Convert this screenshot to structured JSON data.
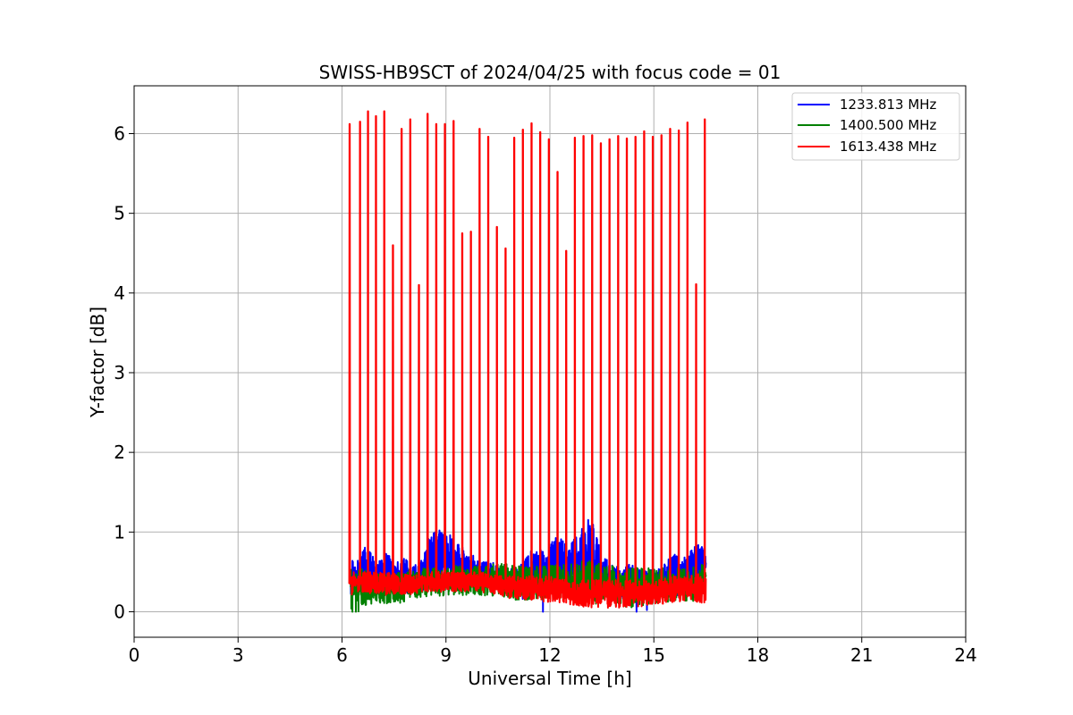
{
  "chart_data": {
    "type": "line",
    "title": "SWISS-HB9SCT of 2024/04/25 with focus code = 01",
    "xlabel": "Universal Time [h]",
    "ylabel": "Y-factor [dB]",
    "xlim": [
      0,
      24
    ],
    "ylim": [
      -0.32,
      6.6
    ],
    "xticks": [
      0,
      3,
      6,
      9,
      12,
      15,
      18,
      21,
      24
    ],
    "xtick_labels": [
      "0",
      "3",
      "6",
      "9",
      "12",
      "15",
      "18",
      "21",
      "24"
    ],
    "yticks": [
      0,
      1,
      2,
      3,
      4,
      5,
      6
    ],
    "ytick_labels": [
      "0",
      "1",
      "2",
      "3",
      "4",
      "5",
      "6"
    ],
    "grid": true,
    "legend_position": "top-right",
    "time_range": [
      6.2,
      16.5
    ],
    "series": [
      {
        "name": "1233.813 MHz",
        "color": "#0000ff",
        "envelope": [
          [
            6.25,
            0.2,
            0.68
          ],
          [
            6.5,
            0.25,
            0.7
          ],
          [
            6.7,
            0.25,
            0.85
          ],
          [
            7.0,
            0.2,
            0.6
          ],
          [
            7.3,
            0.22,
            0.75
          ],
          [
            7.5,
            0.25,
            0.6
          ],
          [
            7.8,
            0.2,
            0.7
          ],
          [
            8.0,
            0.25,
            0.55
          ],
          [
            8.3,
            0.25,
            0.65
          ],
          [
            8.5,
            0.3,
            0.95
          ],
          [
            8.8,
            0.3,
            1.05
          ],
          [
            9.0,
            0.3,
            1.0
          ],
          [
            9.3,
            0.3,
            0.9
          ],
          [
            9.5,
            0.3,
            0.8
          ],
          [
            9.8,
            0.3,
            0.7
          ],
          [
            10.0,
            0.3,
            0.62
          ],
          [
            10.3,
            0.3,
            0.65
          ],
          [
            10.5,
            0.3,
            0.6
          ],
          [
            10.8,
            0.2,
            0.58
          ],
          [
            11.0,
            0.2,
            0.55
          ],
          [
            11.2,
            0.15,
            0.6
          ],
          [
            11.5,
            0.2,
            0.8
          ],
          [
            11.8,
            0.2,
            0.82
          ],
          [
            12.0,
            0.2,
            0.9
          ],
          [
            12.3,
            0.2,
            0.95
          ],
          [
            12.5,
            0.2,
            0.85
          ],
          [
            12.8,
            0.2,
            0.95
          ],
          [
            13.0,
            0.2,
            1.1
          ],
          [
            13.2,
            0.2,
            1.2
          ],
          [
            13.5,
            0.2,
            0.7
          ],
          [
            13.8,
            0.2,
            0.6
          ],
          [
            14.0,
            0.2,
            0.55
          ],
          [
            14.3,
            0.1,
            0.6
          ],
          [
            14.6,
            0.2,
            0.55
          ],
          [
            15.0,
            0.2,
            0.55
          ],
          [
            15.3,
            0.2,
            0.6
          ],
          [
            15.6,
            0.2,
            0.75
          ],
          [
            15.9,
            0.2,
            0.7
          ],
          [
            16.2,
            0.2,
            0.85
          ],
          [
            16.45,
            0.3,
            0.9
          ]
        ],
        "dips": [
          [
            11.8,
            0.0
          ],
          [
            14.5,
            0.0
          ],
          [
            14.8,
            0.02
          ]
        ]
      },
      {
        "name": "1400.500 MHz",
        "color": "#008000",
        "envelope": [
          [
            6.25,
            0.0,
            0.55
          ],
          [
            6.5,
            0.0,
            0.55
          ],
          [
            6.8,
            0.1,
            0.5
          ],
          [
            7.2,
            0.1,
            0.5
          ],
          [
            7.6,
            0.1,
            0.5
          ],
          [
            8.0,
            0.15,
            0.55
          ],
          [
            8.5,
            0.2,
            0.55
          ],
          [
            9.0,
            0.2,
            0.55
          ],
          [
            9.5,
            0.2,
            0.6
          ],
          [
            10.0,
            0.2,
            0.6
          ],
          [
            10.5,
            0.2,
            0.6
          ],
          [
            11.0,
            0.15,
            0.6
          ],
          [
            11.5,
            0.15,
            0.6
          ],
          [
            12.0,
            0.15,
            0.6
          ],
          [
            12.5,
            0.15,
            0.6
          ],
          [
            13.0,
            0.1,
            0.65
          ],
          [
            13.5,
            0.1,
            0.6
          ],
          [
            14.0,
            0.05,
            0.6
          ],
          [
            14.5,
            0.05,
            0.55
          ],
          [
            15.0,
            0.1,
            0.55
          ],
          [
            15.5,
            0.1,
            0.55
          ],
          [
            16.0,
            0.1,
            0.55
          ],
          [
            16.45,
            0.2,
            0.6
          ]
        ],
        "dips": [
          [
            6.3,
            0.0
          ],
          [
            6.4,
            0.0
          ]
        ]
      },
      {
        "name": "1613.438 MHz",
        "color": "#ff0000",
        "envelope": [
          [
            6.25,
            0.2,
            0.5
          ],
          [
            6.5,
            0.25,
            0.5
          ],
          [
            7.0,
            0.2,
            0.5
          ],
          [
            7.5,
            0.2,
            0.5
          ],
          [
            8.0,
            0.2,
            0.45
          ],
          [
            8.5,
            0.25,
            0.5
          ],
          [
            9.0,
            0.25,
            0.5
          ],
          [
            9.5,
            0.25,
            0.5
          ],
          [
            10.0,
            0.25,
            0.5
          ],
          [
            10.5,
            0.2,
            0.45
          ],
          [
            11.0,
            0.15,
            0.45
          ],
          [
            11.5,
            0.15,
            0.45
          ],
          [
            12.0,
            0.1,
            0.45
          ],
          [
            12.5,
            0.1,
            0.4
          ],
          [
            13.0,
            0.05,
            0.4
          ],
          [
            13.5,
            0.05,
            0.4
          ],
          [
            14.0,
            0.05,
            0.4
          ],
          [
            14.5,
            0.05,
            0.4
          ],
          [
            15.0,
            0.1,
            0.4
          ],
          [
            15.5,
            0.1,
            0.45
          ],
          [
            16.0,
            0.15,
            0.45
          ],
          [
            16.45,
            0.1,
            0.5
          ]
        ],
        "spikes": [
          [
            6.22,
            6.12
          ],
          [
            6.52,
            6.15
          ],
          [
            6.75,
            6.28
          ],
          [
            6.98,
            6.22
          ],
          [
            7.22,
            6.28
          ],
          [
            7.47,
            4.6
          ],
          [
            7.72,
            6.06
          ],
          [
            7.97,
            6.18
          ],
          [
            8.22,
            4.1
          ],
          [
            8.47,
            6.25
          ],
          [
            8.72,
            6.12
          ],
          [
            8.97,
            6.12
          ],
          [
            9.22,
            6.16
          ],
          [
            9.47,
            4.75
          ],
          [
            9.72,
            4.77
          ],
          [
            9.97,
            6.06
          ],
          [
            10.22,
            5.96
          ],
          [
            10.47,
            4.83
          ],
          [
            10.72,
            4.56
          ],
          [
            10.97,
            5.95
          ],
          [
            11.22,
            6.05
          ],
          [
            11.47,
            6.13
          ],
          [
            11.72,
            6.02
          ],
          [
            11.97,
            5.93
          ],
          [
            12.22,
            5.52
          ],
          [
            12.47,
            4.53
          ],
          [
            12.72,
            5.95
          ],
          [
            12.97,
            5.97
          ],
          [
            13.22,
            5.98
          ],
          [
            13.47,
            5.88
          ],
          [
            13.72,
            5.93
          ],
          [
            13.97,
            5.97
          ],
          [
            14.22,
            5.94
          ],
          [
            14.47,
            5.96
          ],
          [
            14.72,
            6.03
          ],
          [
            14.97,
            5.96
          ],
          [
            15.22,
            5.98
          ],
          [
            15.47,
            6.06
          ],
          [
            15.72,
            6.04
          ],
          [
            15.97,
            6.14
          ],
          [
            16.22,
            4.11
          ],
          [
            16.47,
            6.18
          ]
        ]
      }
    ]
  }
}
